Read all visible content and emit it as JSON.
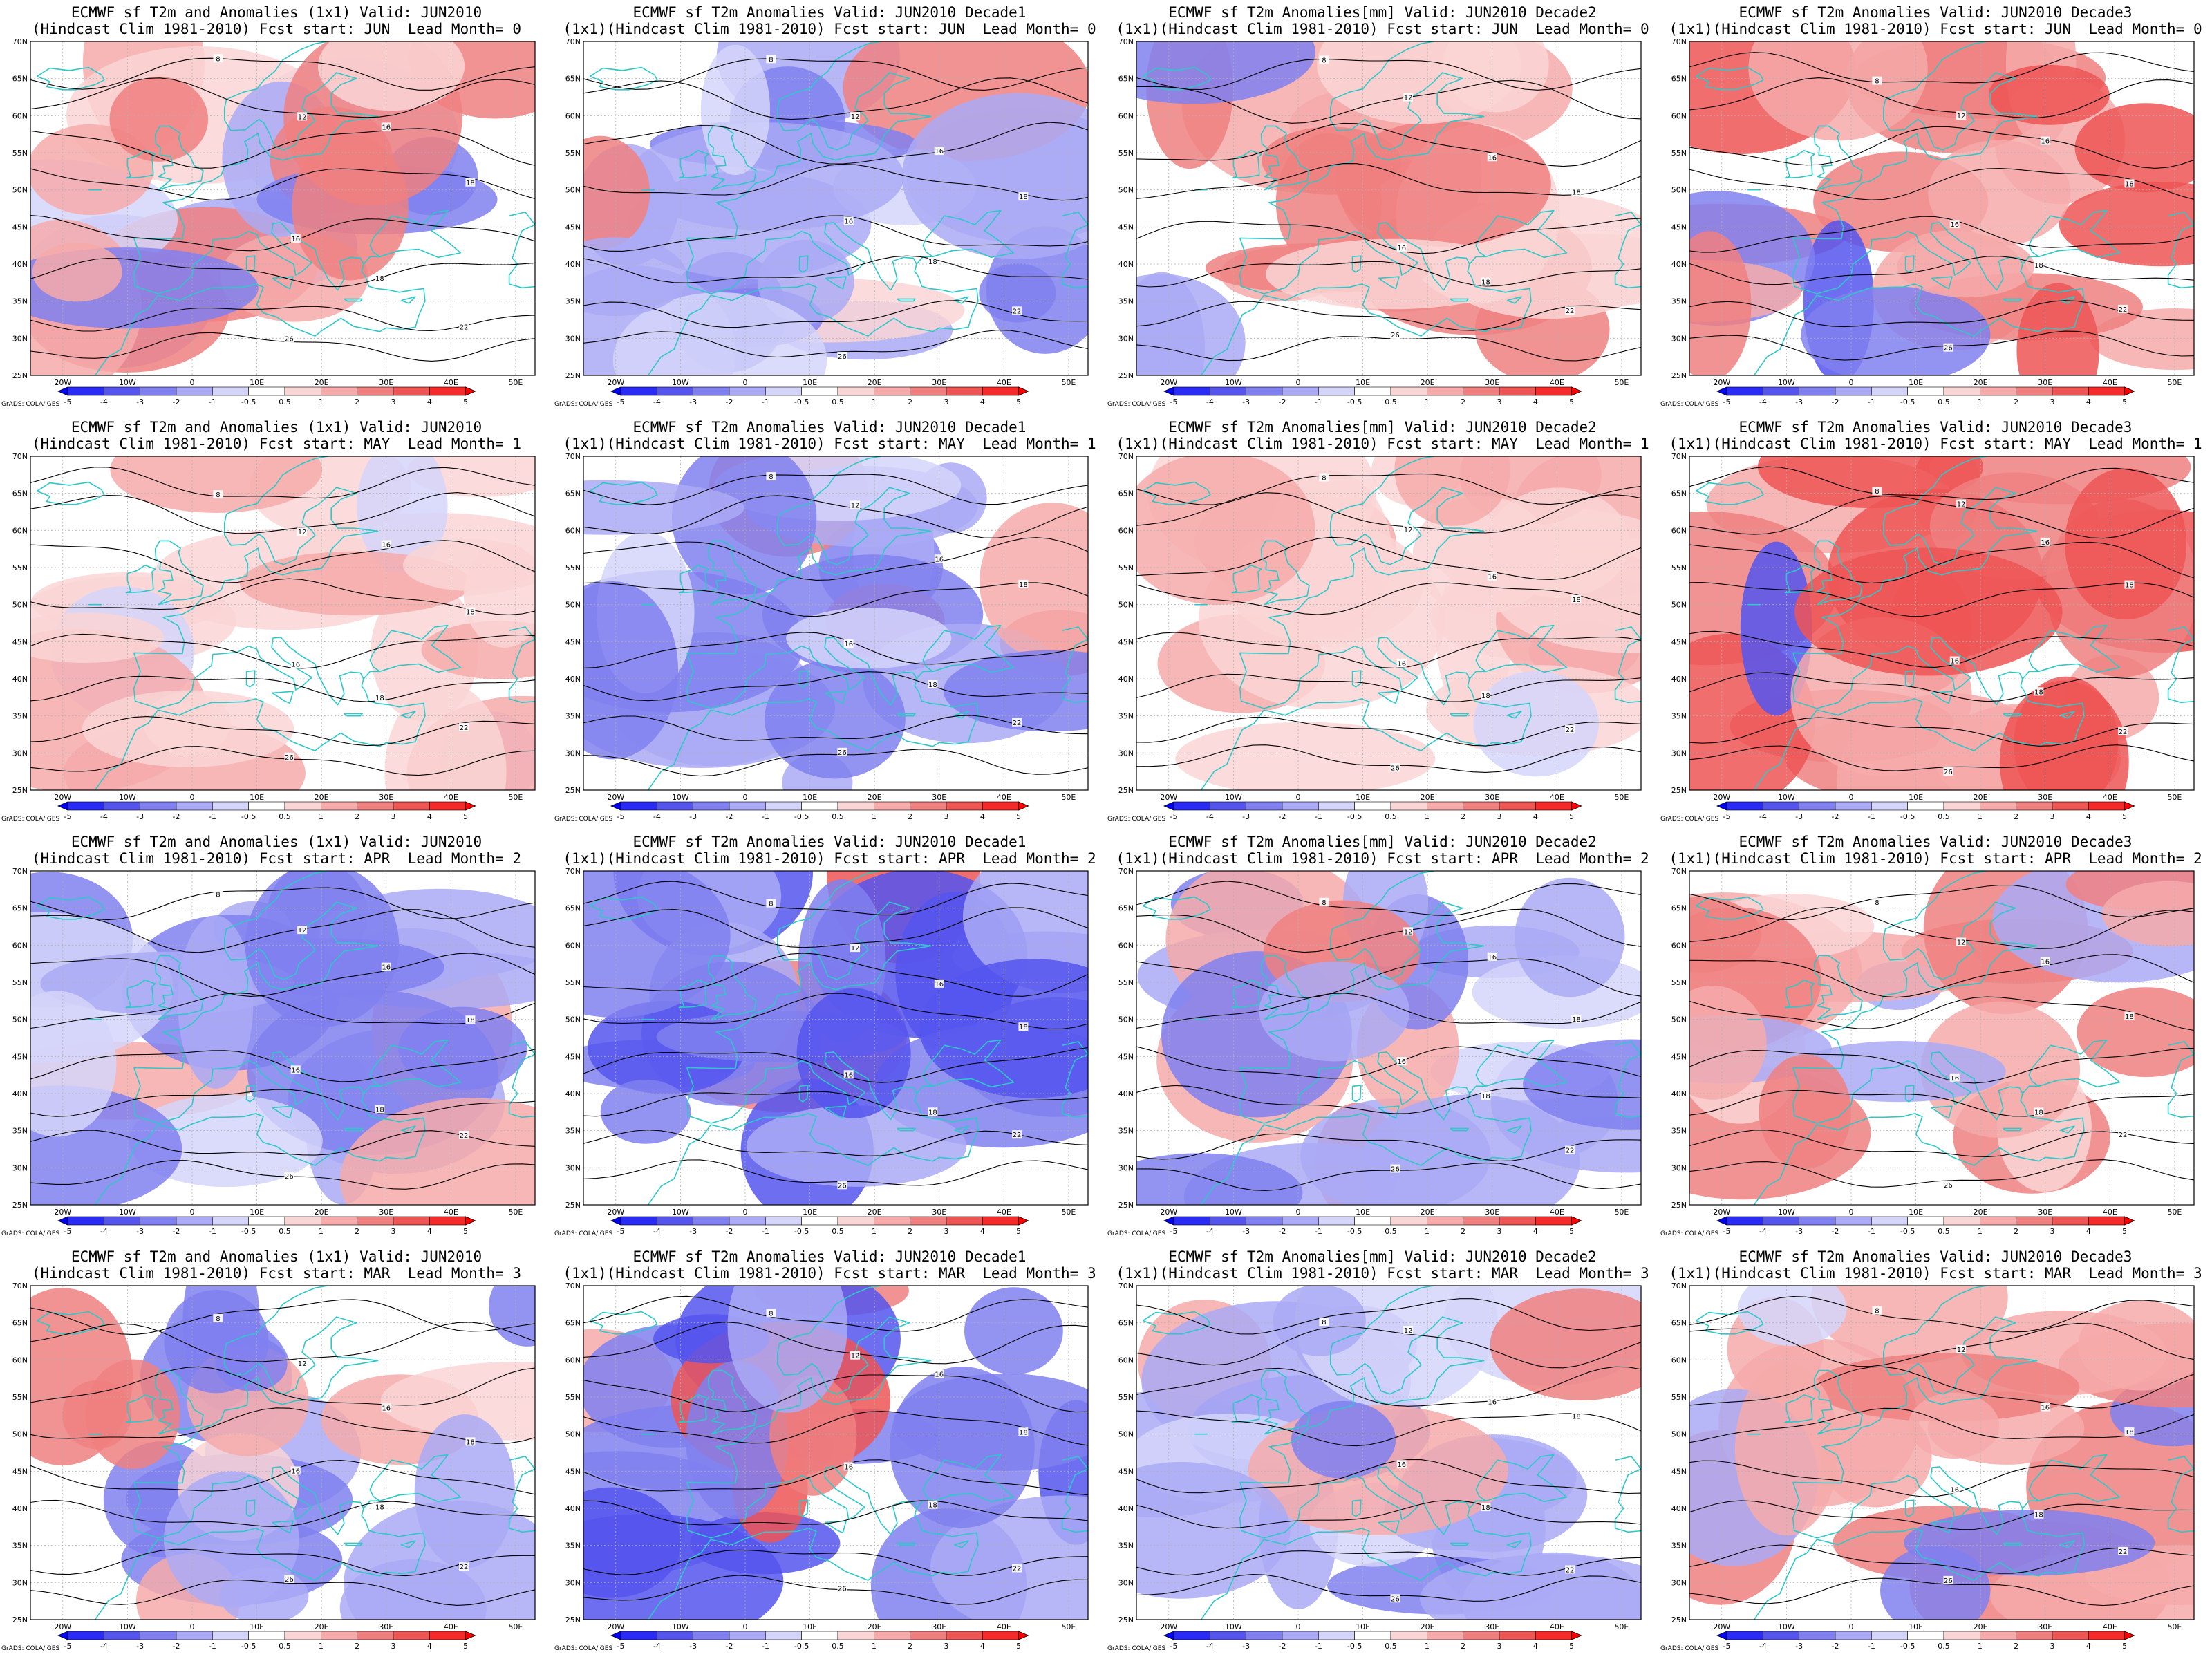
{
  "figure": {
    "credit": "GrADS: COLA/IGES",
    "lon_labels": [
      "20W",
      "10W",
      "0",
      "10E",
      "20E",
      "30E",
      "40E",
      "50E"
    ],
    "lat_labels": [
      "70N",
      "65N",
      "60N",
      "55N",
      "50N",
      "45N",
      "40N",
      "35N",
      "30N",
      "25N"
    ],
    "colorbar": {
      "levels": [
        "-5",
        "-4",
        "-3",
        "-2",
        "-1",
        "-0.5",
        "0.5",
        "1",
        "2",
        "3",
        "4",
        "5"
      ],
      "colors": [
        "#0000ff",
        "#2a2af5",
        "#5555ee",
        "#8080f0",
        "#aaaaf6",
        "#d5d5fa",
        "#ffffff",
        "#fad5d5",
        "#f6aaaa",
        "#f08080",
        "#ee5555",
        "#f52a2a",
        "#ff0000"
      ]
    },
    "colors": {
      "coast": "#2ec8c8",
      "contour": "#000000",
      "grid": "#b0b0b0"
    }
  },
  "panels": [
    {
      "title1": "ECMWF sf T2m and Anomalies (1x1) Valid: JUN2010",
      "title2": "(Hindcast Clim 1981-2010) Fcst start: JUN  Lead Month= 0",
      "bias": 1,
      "seed": 3
    },
    {
      "title1": "ECMWF sf T2m Anomalies Valid: JUN2010 Decade1",
      "title2": "(1x1)(Hindcast Clim 1981-2010) Fcst start: JUN  Lead Month= 0",
      "bias": -1,
      "seed": 7
    },
    {
      "title1": "ECMWF sf T2m Anomalies[mm] Valid: JUN2010 Decade2",
      "title2": "(1x1)(Hindcast Clim 1981-2010) Fcst start: JUN  Lead Month= 0",
      "bias": 1,
      "seed": 11
    },
    {
      "title1": "ECMWF sf T2m Anomalies Valid: JUN2010 Decade3",
      "title2": "(1x1)(Hindcast Clim 1981-2010) Fcst start: JUN  Lead Month= 0",
      "bias": 2,
      "seed": 13
    },
    {
      "title1": "ECMWF sf T2m and Anomalies (1x1) Valid: JUN2010",
      "title2": "(Hindcast Clim 1981-2010) Fcst start: MAY  Lead Month= 1",
      "bias": 0,
      "seed": 17
    },
    {
      "title1": "ECMWF sf T2m Anomalies Valid: JUN2010 Decade1",
      "title2": "(1x1)(Hindcast Clim 1981-2010) Fcst start: MAY  Lead Month= 1",
      "bias": -1,
      "seed": 19
    },
    {
      "title1": "ECMWF sf T2m Anomalies[mm] Valid: JUN2010 Decade2",
      "title2": "(1x1)(Hindcast Clim 1981-2010) Fcst start: MAY  Lead Month= 1",
      "bias": 0,
      "seed": 23
    },
    {
      "title1": "ECMWF sf T2m Anomalies Valid: JUN2010 Decade3",
      "title2": "(1x1)(Hindcast Clim 1981-2010) Fcst start: MAY  Lead Month= 1",
      "bias": 2,
      "seed": 29
    },
    {
      "title1": "ECMWF sf T2m and Anomalies (1x1) Valid: JUN2010",
      "title2": "(Hindcast Clim 1981-2010) Fcst start: APR  Lead Month= 2",
      "bias": -1,
      "seed": 31
    },
    {
      "title1": "ECMWF sf T2m Anomalies Valid: JUN2010 Decade1",
      "title2": "(1x1)(Hindcast Clim 1981-2010) Fcst start: APR  Lead Month= 2",
      "bias": -2,
      "seed": 37
    },
    {
      "title1": "ECMWF sf T2m Anomalies[mm] Valid: JUN2010 Decade2",
      "title2": "(1x1)(Hindcast Clim 1981-2010) Fcst start: APR  Lead Month= 2",
      "bias": -1,
      "seed": 41
    },
    {
      "title1": "ECMWF sf T2m Anomalies Valid: JUN2010 Decade3",
      "title2": "(1x1)(Hindcast Clim 1981-2010) Fcst start: APR  Lead Month= 2",
      "bias": 1,
      "seed": 43
    },
    {
      "title1": "ECMWF sf T2m and Anomalies (1x1) Valid: JUN2010",
      "title2": "(Hindcast Clim 1981-2010) Fcst start: MAR  Lead Month= 3",
      "bias": -1,
      "seed": 47
    },
    {
      "title1": "ECMWF sf T2m Anomalies Valid: JUN2010 Decade1",
      "title2": "(1x1)(Hindcast Clim 1981-2010) Fcst start: MAR  Lead Month= 3",
      "bias": -2,
      "seed": 53
    },
    {
      "title1": "ECMWF sf T2m Anomalies[mm] Valid: JUN2010 Decade2",
      "title2": "(1x1)(Hindcast Clim 1981-2010) Fcst start: MAR  Lead Month= 3",
      "bias": -1,
      "seed": 59
    },
    {
      "title1": "ECMWF sf T2m Anomalies Valid: JUN2010 Decade3",
      "title2": "(1x1)(Hindcast Clim 1981-2010) Fcst start: MAR  Lead Month= 3",
      "bias": 1,
      "seed": 61
    }
  ]
}
